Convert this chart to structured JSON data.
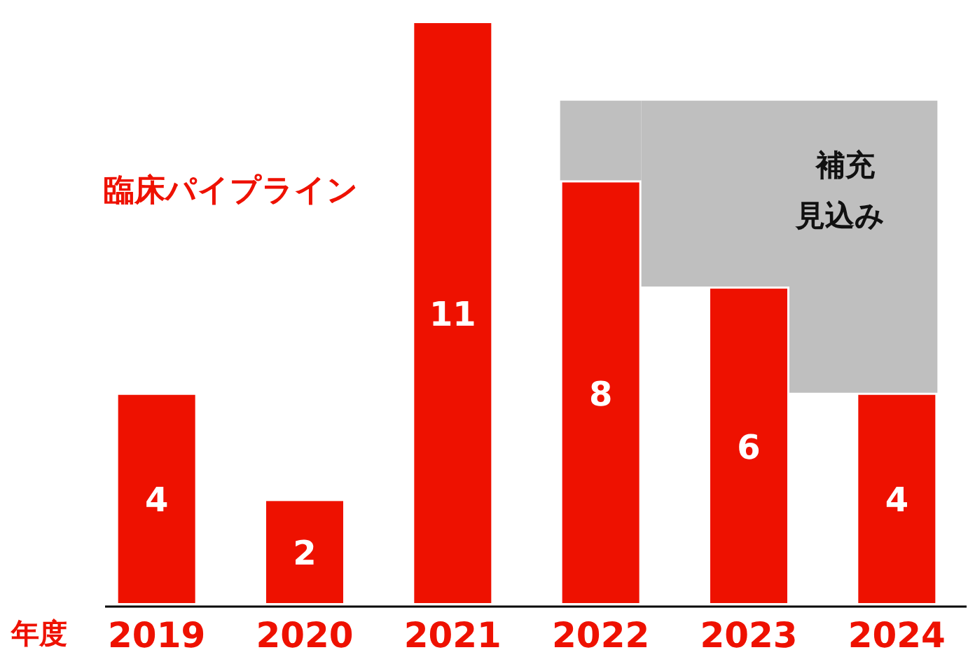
{
  "chart_data": {
    "type": "bar",
    "stacked": true,
    "title": "臨床パイプライン",
    "xlabel": "年度",
    "categories": [
      "2019",
      "2020",
      "2021",
      "2022",
      "2023",
      "2024"
    ],
    "ylim": [
      0,
      11
    ],
    "tick_labels": "x",
    "series": [
      {
        "color": "#ee1100",
        "values": [
          4,
          2,
          11,
          8,
          6,
          4
        ],
        "value_labels": [
          "4",
          "2",
          "11",
          "8",
          "6",
          "4"
        ]
      },
      {
        "name": "補充見込み",
        "color": "#bfbfbf",
        "values": [
          null,
          null,
          null,
          1.5,
          3.5,
          5.5
        ]
      }
    ]
  }
}
